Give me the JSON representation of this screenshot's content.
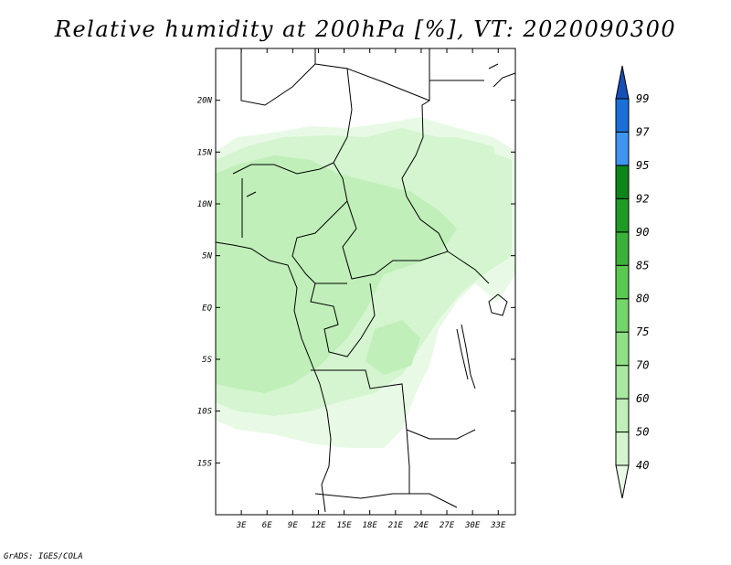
{
  "title": "Relative humidity at 200hPa [%], VT: 2020090300",
  "credit": "GrADS: IGES/COLA",
  "map": {
    "lon_range": [
      0,
      35
    ],
    "lat_range": [
      -20,
      25
    ],
    "x_ticks": [
      "3E",
      "6E",
      "9E",
      "12E",
      "15E",
      "18E",
      "21E",
      "24E",
      "27E",
      "30E",
      "33E"
    ],
    "x_tick_values": [
      3,
      6,
      9,
      12,
      15,
      18,
      21,
      24,
      27,
      30,
      33
    ],
    "y_ticks": [
      "20N",
      "15N",
      "10N",
      "5N",
      "EQ",
      "5S",
      "10S",
      "15S"
    ],
    "y_tick_values": [
      20,
      15,
      10,
      5,
      0,
      -5,
      -10,
      -15
    ]
  },
  "colorbar": {
    "levels": [
      "40",
      "50",
      "60",
      "70",
      "75",
      "80",
      "85",
      "90",
      "92",
      "95",
      "97",
      "99"
    ],
    "colors": [
      "#e8fae6",
      "#d4f5cf",
      "#c0efb9",
      "#a8e8a0",
      "#8fe086",
      "#74d56a",
      "#5bc951",
      "#3bb13a",
      "#1f9a25",
      "#0d851a",
      "#3f95f0",
      "#1a6fd9",
      "#1450b8"
    ]
  },
  "humidity_regions": [
    {
      "level": "40",
      "color": "#e8fae6"
    },
    {
      "level": "50",
      "color": "#d4f5cf"
    },
    {
      "level": "60",
      "color": "#c0efb9"
    }
  ]
}
